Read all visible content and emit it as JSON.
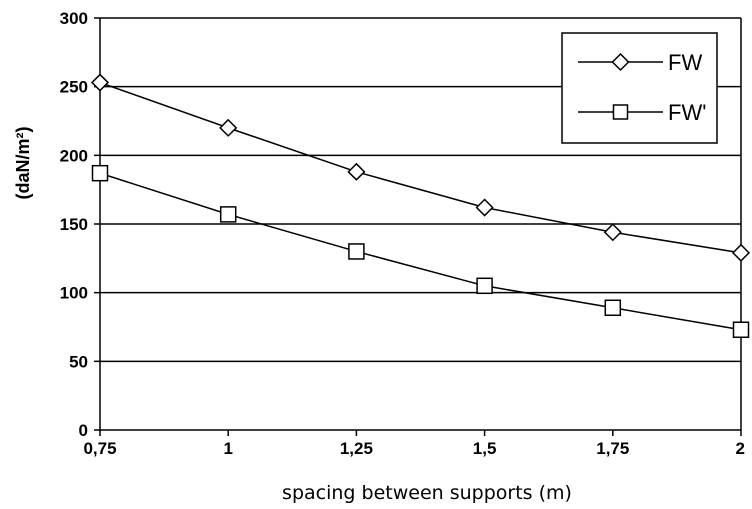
{
  "chart_data": {
    "type": "line",
    "x": [
      "0,75",
      "1",
      "1,25",
      "1,5",
      "1,75",
      "2"
    ],
    "x_values": [
      0.75,
      1.0,
      1.25,
      1.5,
      1.75,
      2.0
    ],
    "series": [
      {
        "name": "FW",
        "marker": "diamond",
        "values": [
          253,
          220,
          188,
          162,
          144,
          129
        ]
      },
      {
        "name": "FW'",
        "marker": "square",
        "values": [
          187,
          157,
          130,
          105,
          89,
          73
        ]
      }
    ],
    "xlabel": "spacing between supports (m)",
    "ylabel": "(daN/m²)",
    "ylim": [
      0,
      300
    ],
    "yticks": [
      "0",
      "50",
      "100",
      "150",
      "200",
      "250",
      "300"
    ],
    "ytick_values": [
      0,
      50,
      100,
      150,
      200,
      250,
      300
    ],
    "grid": "horizontal",
    "legend_position": "top-right",
    "colors": {
      "line": "#000000",
      "marker_fill": "#ffffff",
      "background": "#ffffff"
    }
  }
}
